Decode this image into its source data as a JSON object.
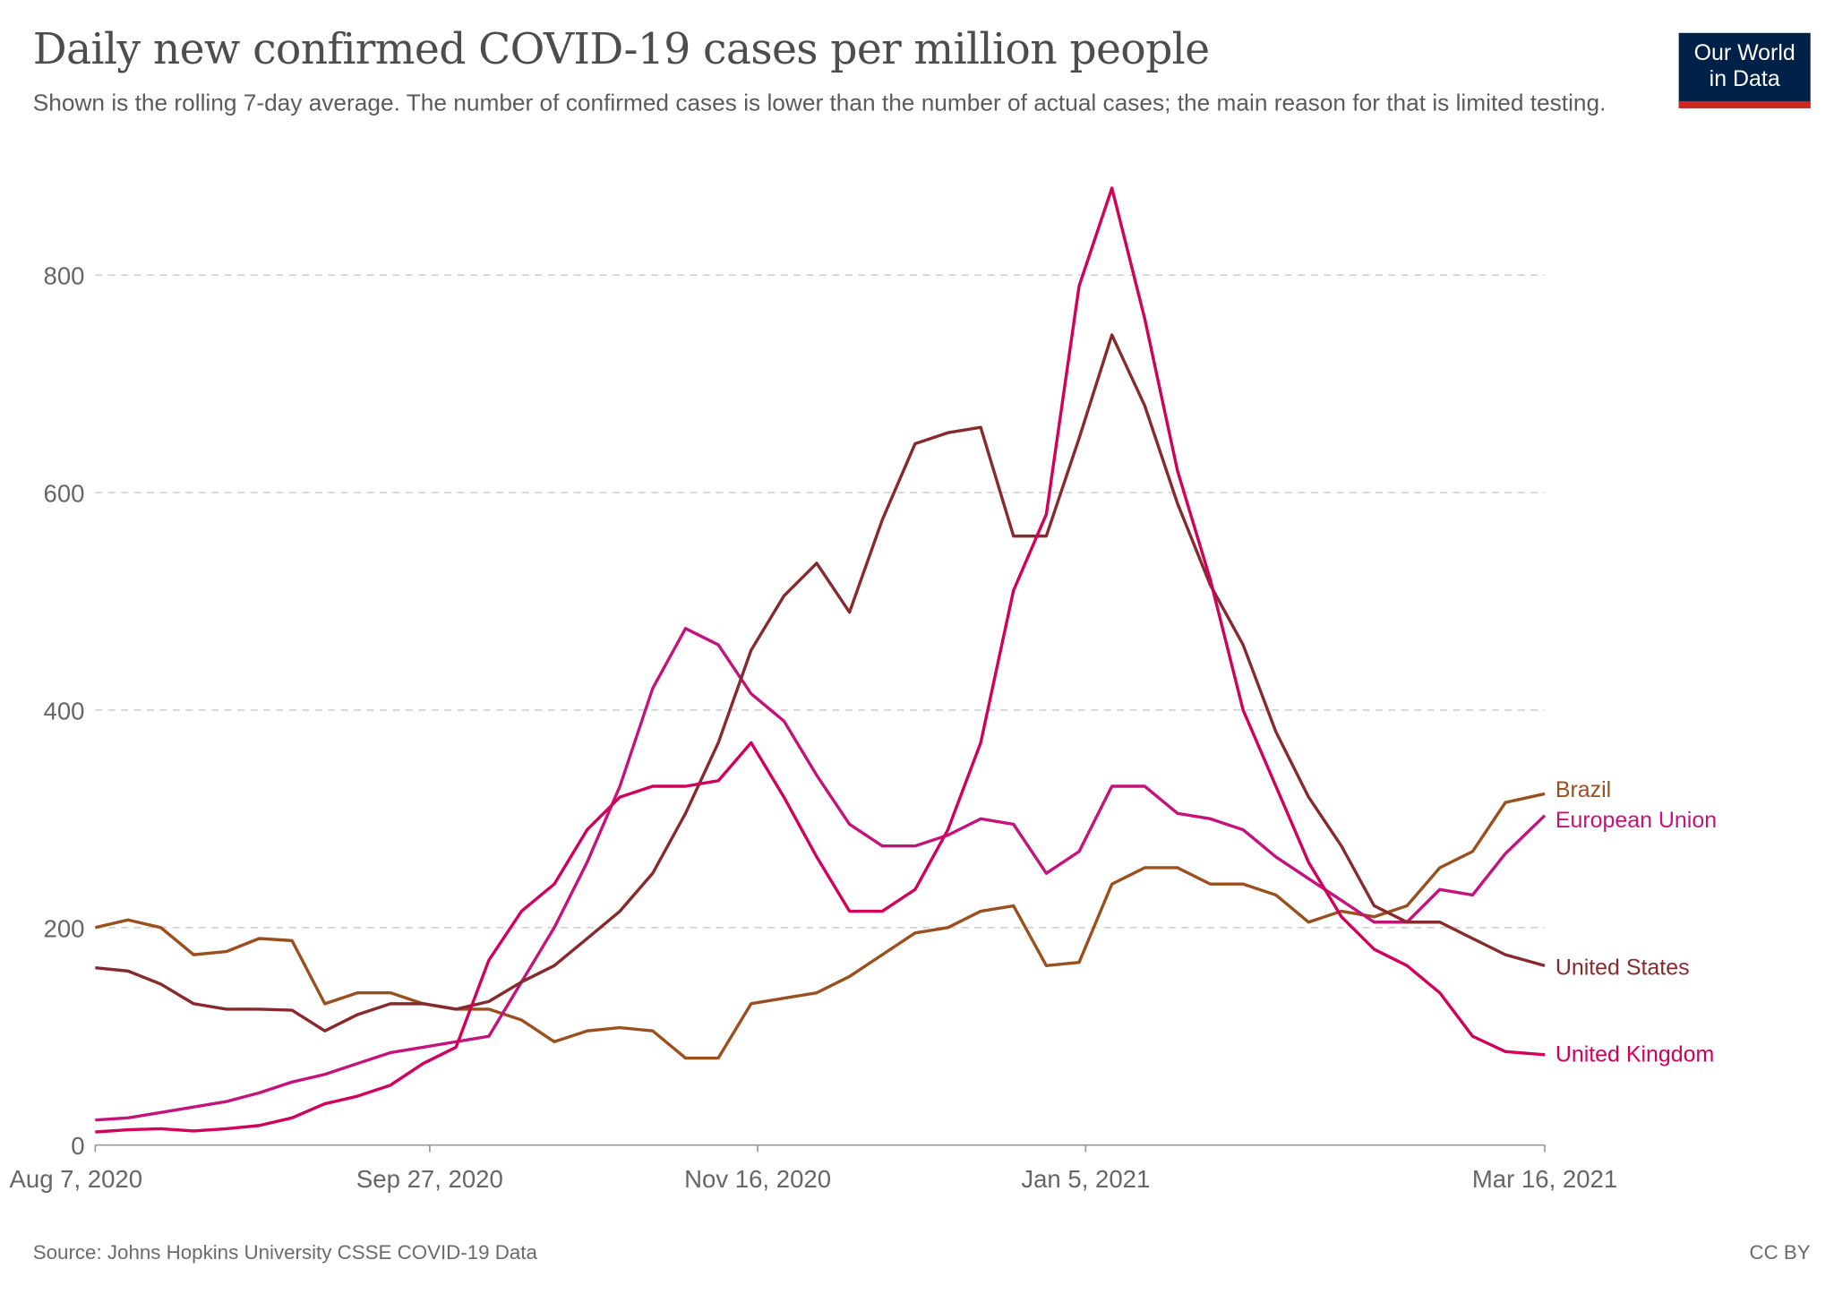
{
  "header": {
    "title": "Daily new confirmed COVID-19 cases per million people",
    "subtitle": "Shown is the rolling 7-day average. The number of confirmed cases is lower than the number of actual cases; the main reason for that is limited testing.",
    "logo_line1": "Our World",
    "logo_line2": "in Data"
  },
  "footer": {
    "source": "Source: Johns Hopkins University CSSE COVID-19 Data",
    "license": "CC BY"
  },
  "chart_data": {
    "type": "line",
    "title": "Daily new confirmed COVID-19 cases per million people",
    "xlabel": "",
    "ylabel": "",
    "xlim": [
      "2020-08-07",
      "2021-03-16"
    ],
    "ylim": [
      0,
      880
    ],
    "grid": true,
    "legend": "right (end-of-line labels)",
    "x_ticks": [
      {
        "date": "2020-08-07",
        "label": "Aug 7, 2020"
      },
      {
        "date": "2020-09-27",
        "label": "Sep 27, 2020"
      },
      {
        "date": "2020-11-16",
        "label": "Nov 16, 2020"
      },
      {
        "date": "2021-01-05",
        "label": "Jan 5, 2021"
      },
      {
        "date": "2021-03-16",
        "label": "Mar 16, 2021"
      }
    ],
    "y_ticks": [
      0,
      200,
      400,
      600,
      800
    ],
    "x": [
      "2020-08-07",
      "2020-08-12",
      "2020-08-17",
      "2020-08-22",
      "2020-08-27",
      "2020-09-01",
      "2020-09-06",
      "2020-09-11",
      "2020-09-16",
      "2020-09-21",
      "2020-09-26",
      "2020-10-01",
      "2020-10-06",
      "2020-10-11",
      "2020-10-16",
      "2020-10-21",
      "2020-10-26",
      "2020-10-31",
      "2020-11-05",
      "2020-11-10",
      "2020-11-15",
      "2020-11-20",
      "2020-11-25",
      "2020-11-30",
      "2020-12-05",
      "2020-12-10",
      "2020-12-15",
      "2020-12-20",
      "2020-12-25",
      "2020-12-30",
      "2021-01-04",
      "2021-01-09",
      "2021-01-14",
      "2021-01-19",
      "2021-01-24",
      "2021-01-29",
      "2021-02-03",
      "2021-02-08",
      "2021-02-13",
      "2021-02-18",
      "2021-02-23",
      "2021-02-28",
      "2021-03-05",
      "2021-03-10",
      "2021-03-16"
    ],
    "series": [
      {
        "name": "Brazil",
        "color": "#9a4f1e",
        "values": [
          200,
          207,
          200,
          175,
          178,
          190,
          188,
          130,
          140,
          140,
          130,
          125,
          125,
          115,
          95,
          105,
          108,
          105,
          80,
          80,
          130,
          135,
          140,
          155,
          175,
          195,
          200,
          215,
          220,
          165,
          168,
          240,
          255,
          255,
          240,
          240,
          230,
          205,
          215,
          210,
          220,
          255,
          270,
          315,
          323
        ]
      },
      {
        "name": "European Union",
        "color": "#c4137b",
        "values": [
          23,
          25,
          30,
          35,
          40,
          48,
          58,
          65,
          75,
          85,
          90,
          95,
          100,
          150,
          200,
          260,
          330,
          420,
          475,
          460,
          415,
          390,
          340,
          295,
          275,
          275,
          285,
          300,
          295,
          250,
          270,
          330,
          330,
          305,
          300,
          290,
          265,
          245,
          225,
          205,
          205,
          235,
          230,
          268,
          303
        ]
      },
      {
        "name": "United States",
        "color": "#862a2d",
        "values": [
          163,
          160,
          148,
          130,
          125,
          125,
          124,
          105,
          120,
          130,
          130,
          125,
          132,
          150,
          165,
          190,
          215,
          250,
          305,
          370,
          455,
          505,
          535,
          490,
          575,
          645,
          655,
          660,
          560,
          560,
          650,
          745,
          680,
          590,
          515,
          460,
          380,
          320,
          275,
          220,
          205,
          205,
          190,
          175,
          165
        ]
      },
      {
        "name": "United Kingdom",
        "color": "#d1005a",
        "values": [
          12,
          14,
          15,
          13,
          15,
          18,
          25,
          38,
          45,
          55,
          75,
          90,
          170,
          215,
          240,
          290,
          320,
          330,
          330,
          335,
          370,
          320,
          265,
          215,
          215,
          235,
          290,
          370,
          510,
          580,
          790,
          880,
          760,
          620,
          520,
          400,
          330,
          260,
          210,
          180,
          165,
          140,
          100,
          86,
          83
        ]
      }
    ]
  }
}
